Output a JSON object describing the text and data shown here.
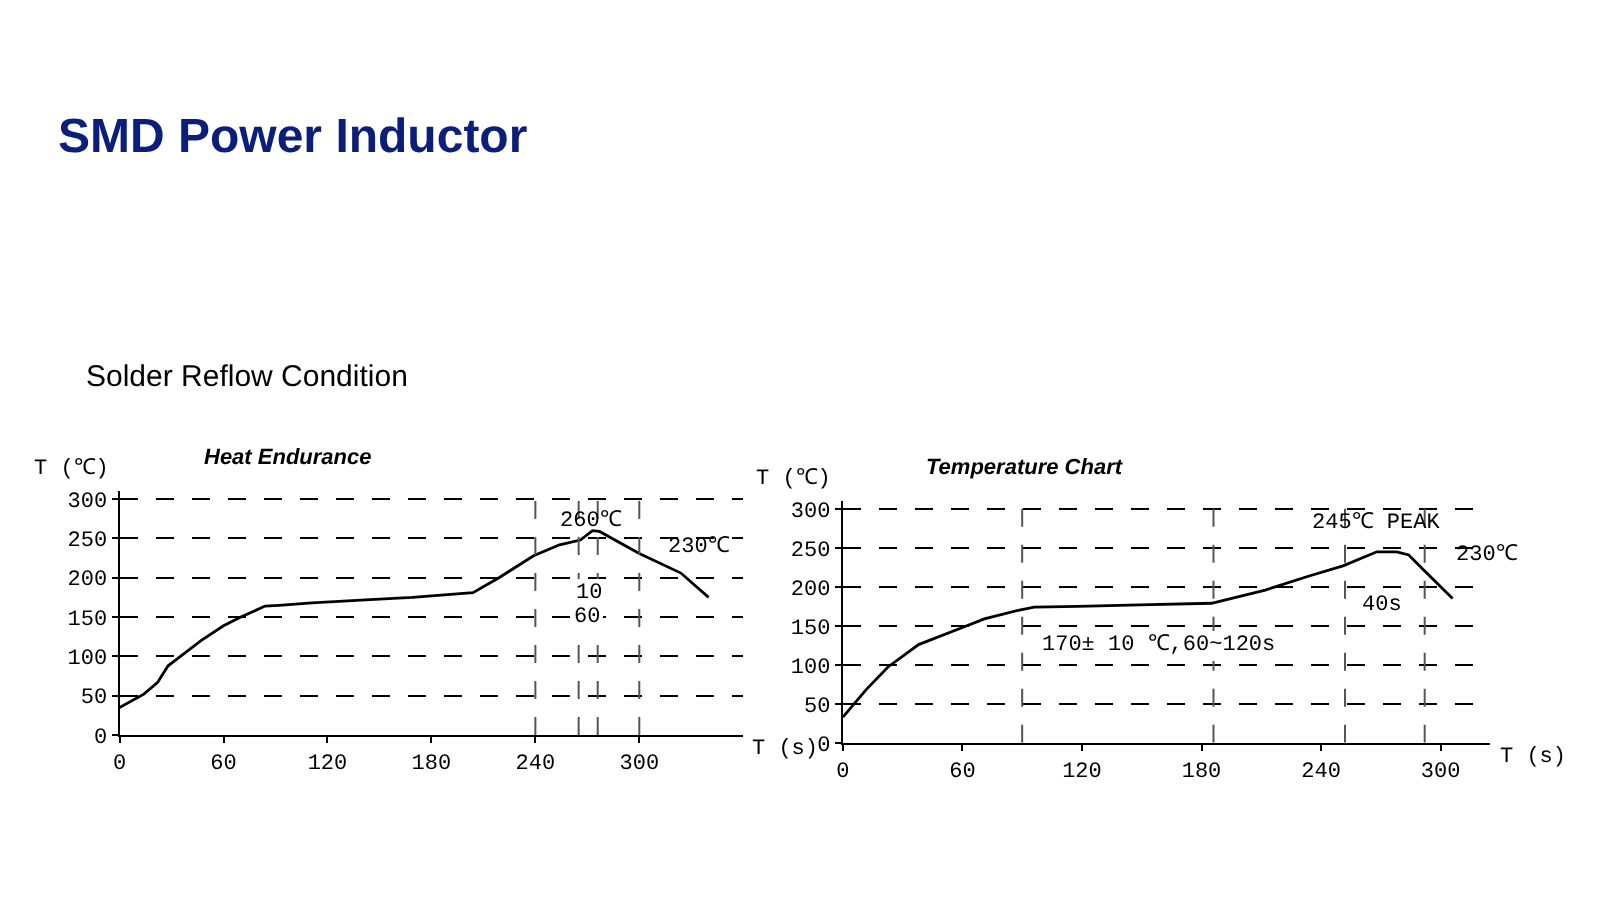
{
  "chart_data": [
    {
      "type": "line",
      "title": "Heat Endurance",
      "xlabel": "T (s)",
      "ylabel": "T (℃)",
      "annotations": [
        "SMD Power Inductor",
        "Solder Reflow Condition",
        {
          "text": "260℃",
          "x": 272,
          "y": 272
        },
        {
          "text": "230℃",
          "x": 300,
          "y": 231
        },
        {
          "text": "10",
          "x": 270.5,
          "y": 180
        },
        {
          "text": "60",
          "x": 270,
          "y": 150
        }
      ],
      "x": [
        0,
        14,
        22,
        28,
        34,
        47,
        60,
        70,
        84,
        92,
        111,
        142,
        169,
        204,
        219,
        239,
        254,
        266,
        273,
        277,
        300,
        324,
        340
      ],
      "series": [
        {
          "color": "#000000",
          "values": [
            35,
            52,
            67,
            88,
            98,
            120,
            139,
            150,
            164,
            165,
            168,
            172,
            175,
            181,
            200,
            228,
            242,
            248,
            260,
            259,
            231,
            206,
            175
          ]
        }
      ],
      "xlim": [
        0,
        360
      ],
      "xticks": [
        0,
        60,
        120,
        180,
        240,
        300
      ],
      "ylim": [
        0,
        310
      ],
      "yticks": [
        0,
        50,
        100,
        150,
        200,
        250,
        300
      ],
      "ref_lines": [
        {
          "axis": "x",
          "value": 240
        },
        {
          "axis": "x",
          "value": 265
        },
        {
          "axis": "x",
          "value": 276
        },
        {
          "axis": "x",
          "value": 300
        }
      ],
      "grid": "y",
      "marker": "none",
      "line_style": "solid"
    },
    {
      "type": "line",
      "title": "Temperature Chart",
      "xlabel": "T (s)",
      "ylabel": "T (℃)",
      "annotations": [
        {
          "text": "245℃ PEAK",
          "x": 268,
          "y": 245
        },
        {
          "text": "230℃",
          "x": 291,
          "y": 223
        },
        "40s",
        "170± 10 ℃,60~120s"
      ],
      "x": [
        0,
        11.6,
        22.5,
        38,
        60,
        71,
        88,
        96,
        118,
        149,
        185,
        212,
        234,
        251,
        268,
        278,
        284,
        291,
        306
      ],
      "series": [
        {
          "color": "#000000",
          "values": [
            33,
            68,
            97,
            126,
            148,
            159,
            170,
            174,
            175,
            177,
            179,
            196,
            214,
            227,
            245,
            245,
            241,
            223,
            185
          ]
        }
      ],
      "xlim": [
        0,
        325
      ],
      "xticks": [
        0,
        60,
        120,
        180,
        240,
        300
      ],
      "ylim": [
        0,
        310
      ],
      "yticks": [
        0,
        50,
        100,
        150,
        200,
        250,
        300
      ],
      "ref_lines": [
        {
          "axis": "x",
          "value": 90
        },
        {
          "axis": "x",
          "value": 186
        },
        {
          "axis": "x",
          "value": 252
        },
        {
          "axis": "x",
          "value": 292
        }
      ],
      "grid": "y",
      "marker": "none",
      "line_style": "solid"
    }
  ]
}
